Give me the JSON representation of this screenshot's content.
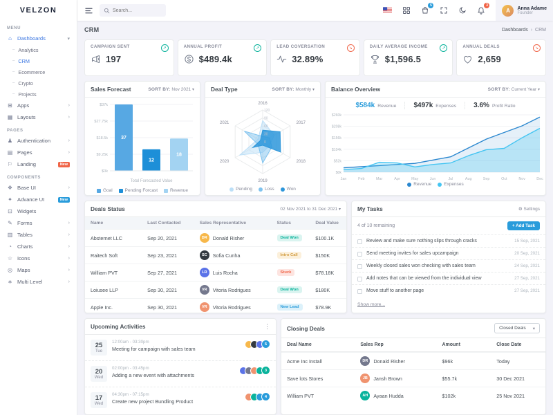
{
  "brand": {
    "name": "VELZON"
  },
  "topbar": {
    "search": {
      "placeholder": "Search..."
    },
    "icons": [
      {
        "name": "flag-us-icon"
      },
      {
        "name": "apps-grid-icon"
      },
      {
        "name": "shopping-bag-icon",
        "badge": "5",
        "badge_color": "#299cdb"
      },
      {
        "name": "fullscreen-icon"
      },
      {
        "name": "dark-mode-moon-icon"
      },
      {
        "name": "notifications-bell-icon",
        "badge": "3",
        "badge_color": "#f06548"
      }
    ],
    "user": {
      "name": "Anna Adame",
      "role": "Founder"
    }
  },
  "page": {
    "title": "CRM",
    "breadcrumb": [
      "Dashboards",
      "CRM"
    ]
  },
  "sidebar": {
    "sections": [
      {
        "label": "MENU",
        "items": [
          {
            "label": "Dashboards",
            "icon": "dashboard-icon",
            "active": true,
            "chevron": "down",
            "children": [
              {
                "label": "Analytics"
              },
              {
                "label": "CRM",
                "active": true
              },
              {
                "label": "Ecommerce"
              },
              {
                "label": "Crypto"
              },
              {
                "label": "Projects"
              }
            ]
          },
          {
            "label": "Apps",
            "icon": "apps-icon",
            "chevron": "right"
          },
          {
            "label": "Layouts",
            "icon": "layouts-icon",
            "chevron": "right"
          }
        ]
      },
      {
        "label": "PAGES",
        "items": [
          {
            "label": "Authentication",
            "icon": "user-icon",
            "chevron": "right"
          },
          {
            "label": "Pages",
            "icon": "pages-icon",
            "chevron": "right"
          },
          {
            "label": "Landing",
            "icon": "landing-icon",
            "badge": "New",
            "badge_color": "#f06548"
          }
        ]
      },
      {
        "label": "COMPONENTS",
        "items": [
          {
            "label": "Base UI",
            "icon": "base-ui-icon",
            "chevron": "right"
          },
          {
            "label": "Advance UI",
            "icon": "advance-ui-icon",
            "badge": "New",
            "badge_color": "#299cdb"
          },
          {
            "label": "Widgets",
            "icon": "widgets-icon"
          },
          {
            "label": "Forms",
            "icon": "forms-icon",
            "chevron": "right"
          },
          {
            "label": "Tables",
            "icon": "tables-icon",
            "chevron": "right"
          },
          {
            "label": "Charts",
            "icon": "charts-icon",
            "chevron": "right"
          },
          {
            "label": "Icons",
            "icon": "icons-icon",
            "chevron": "right"
          },
          {
            "label": "Maps",
            "icon": "maps-icon",
            "chevron": "right"
          },
          {
            "label": "Multi Level",
            "icon": "multi-level-icon",
            "chevron": "right"
          }
        ]
      }
    ]
  },
  "kpis": [
    {
      "label": "CAMPAIGN SENT",
      "value": "197",
      "icon": "megaphone-icon",
      "trend": "up"
    },
    {
      "label": "ANNUAL PROFIT",
      "value": "$489.4k",
      "icon": "dollar-icon",
      "trend": "up"
    },
    {
      "label": "LEAD COVERSATION",
      "value": "32.89%",
      "icon": "pulse-icon",
      "trend": "down"
    },
    {
      "label": "DAILY AVERAGE INCOME",
      "value": "$1,596.5",
      "icon": "trophy-icon",
      "trend": "up"
    },
    {
      "label": "ANNUAL DEALS",
      "value": "2,659",
      "icon": "heart-icon",
      "trend": "down"
    }
  ],
  "panels": {
    "sales_forecast": {
      "title": "Sales Forecast",
      "sort_by_label": "SORT BY:",
      "sort_value": "Nov 2021"
    },
    "deal_type": {
      "title": "Deal Type",
      "sort_by_label": "SORT BY:",
      "sort_value": "Monthly"
    },
    "balance_overview": {
      "title": "Balance Overview",
      "sort_by_label": "SORT BY:",
      "sort_value": "Current Year",
      "stats": [
        {
          "value": "$584k",
          "label": "Revenue",
          "highlight": true
        },
        {
          "value": "$497k",
          "label": "Expenses"
        },
        {
          "value": "3.6%",
          "label": "Profit Ratio"
        }
      ]
    },
    "deals_status": {
      "title": "Deals Status",
      "date_range": "02 Nov 2021 to 31 Dec 2021",
      "columns": [
        "Name",
        "Last Contacted",
        "Sales Representative",
        "Status",
        "Deal Value"
      ],
      "rows": [
        {
          "name": "Absternet LLC",
          "last_contacted": "Sep 20, 2021",
          "rep": "Donald Risher",
          "status": "Deal Won",
          "status_type": "success",
          "value": "$100.1K"
        },
        {
          "name": "Raitech Soft",
          "last_contacted": "Sep 23, 2021",
          "rep": "Sofia Cunha",
          "status": "Intro Call",
          "status_type": "warning",
          "value": "$150K"
        },
        {
          "name": "William PVT",
          "last_contacted": "Sep 27, 2021",
          "rep": "Luis Rocha",
          "status": "Stuck",
          "status_type": "danger",
          "value": "$78.18K"
        },
        {
          "name": "Loiusee LLP",
          "last_contacted": "Sep 30, 2021",
          "rep": "Vitoria Rodrigues",
          "status": "Deal Won",
          "status_type": "success",
          "value": "$180K"
        },
        {
          "name": "Apple Inc.",
          "last_contacted": "Sep 30, 2021",
          "rep": "Vitoria Rodrigues",
          "status": "New Lead",
          "status_type": "info",
          "value": "$78.9K"
        }
      ]
    },
    "my_tasks": {
      "title": "My Tasks",
      "settings_label": "Settings",
      "remaining": "4 of 10 remaining",
      "add_task_label": "+ Add Task",
      "tasks": [
        {
          "text": "Review and make sure nothing slips through cracks",
          "date": "15 Sep, 2021"
        },
        {
          "text": "Send meeting invites for sales upcampaign",
          "date": "20 Sep, 2021"
        },
        {
          "text": "Weekly closed sales won checking with sales team",
          "date": "24 Sep, 2021"
        },
        {
          "text": "Add notes that can be viewed from the individual view",
          "date": "27 Sep, 2021"
        },
        {
          "text": "Move stuff to another page",
          "date": "27 Sep, 2021"
        }
      ],
      "show_more_label": "Show more..."
    },
    "upcoming_activities": {
      "title": "Upcoming Activities",
      "items": [
        {
          "day": "25",
          "weekday": "Tue",
          "time": "12:00am - 03:30pm",
          "title": "Meeting for campaign with sales team",
          "avatar_count": 3,
          "more_count": "5",
          "badge_color": "#299cdb"
        },
        {
          "day": "20",
          "weekday": "Wed",
          "time": "02:00pm - 03:45pm",
          "title": "Adding a new event with attachments",
          "avatar_count": 4,
          "more_count": "3",
          "badge_color": "#0ab39c"
        },
        {
          "day": "17",
          "weekday": "Wed",
          "time": "04:30pm - 07:15pm",
          "title": "Create new project Bundling Product",
          "avatar_count": 3,
          "more_count": "4",
          "badge_color": "#299cdb"
        }
      ]
    },
    "closing_deals": {
      "title": "Closing Deals",
      "filter_value": "Closed Deals",
      "columns": [
        "Deal Name",
        "Sales Rep",
        "Amount",
        "Close Date"
      ],
      "rows": [
        {
          "deal": "Acme Inc Install",
          "rep": "Donald Risher",
          "amount": "$96k",
          "close_date": "Today"
        },
        {
          "deal": "Save lots Stores",
          "rep": "Jansh Brown",
          "amount": "$55.7k",
          "close_date": "30 Dec 2021"
        },
        {
          "deal": "William PVT",
          "rep": "Ayaan Hudda",
          "amount": "$102k",
          "close_date": "25 Nov 2021"
        }
      ]
    }
  },
  "chart_data": [
    {
      "id": "sales_forecast",
      "type": "bar",
      "title": "Sales Forecast",
      "categories": [
        "Goal",
        "Pending Forcast",
        "Revenue"
      ],
      "values": [
        37,
        12,
        18
      ],
      "colors": [
        "#57a8e3",
        "#1d8fd8",
        "#a3d3f2"
      ],
      "xlabel": "Total Forecasted Value",
      "ylabel": "",
      "ylim": [
        0,
        37
      ],
      "yticks": [
        "$0k",
        "$9.25k",
        "$18.5k",
        "$27.75k",
        "$37k"
      ],
      "ytick_values": [
        0,
        9.25,
        18.5,
        27.75,
        37
      ],
      "legend": [
        "Goal",
        "Pending Forcast",
        "Revenue"
      ],
      "legend_position": "bottom",
      "grid": true
    },
    {
      "id": "deal_type",
      "type": "radar",
      "title": "Deal Type",
      "categories": [
        "2016",
        "2017",
        "2018",
        "2019",
        "2020",
        "2021"
      ],
      "rmax": 120,
      "rticks": [
        0,
        30,
        60,
        90,
        120
      ],
      "series": [
        {
          "name": "Pending",
          "values": [
            80,
            50,
            30,
            40,
            100,
            20
          ],
          "color": "#bcdff7"
        },
        {
          "name": "Loss",
          "values": [
            20,
            30,
            40,
            80,
            20,
            80
          ],
          "color": "#7fc3ef"
        },
        {
          "name": "Won",
          "values": [
            44,
            76,
            78,
            13,
            43,
            10
          ],
          "color": "#2d96da"
        }
      ],
      "legend_position": "bottom",
      "grid": true
    },
    {
      "id": "balance_overview",
      "type": "area",
      "title": "Balance Overview",
      "x": [
        "Jan",
        "Feb",
        "Mar",
        "Apr",
        "May",
        "Jun",
        "Jul",
        "Aug",
        "Sep",
        "Oct",
        "Nov",
        "Dec"
      ],
      "series": [
        {
          "name": "Revenue",
          "values": [
            20,
            25,
            30,
            35,
            40,
            55,
            70,
            110,
            150,
            180,
            210,
            250
          ],
          "color": "#2a87cf"
        },
        {
          "name": "Expenses",
          "values": [
            12,
            17,
            45,
            42,
            24,
            35,
            42,
            75,
            102,
            108,
            156,
            199
          ],
          "color": "#45c5f2"
        }
      ],
      "ylim": [
        0,
        260
      ],
      "yticks": [
        "$0k",
        "$52k",
        "$104k",
        "$156k",
        "$208k",
        "$260k"
      ],
      "ytick_values": [
        0,
        52,
        104,
        156,
        208,
        260
      ],
      "legend_position": "bottom",
      "grid": true
    }
  ]
}
